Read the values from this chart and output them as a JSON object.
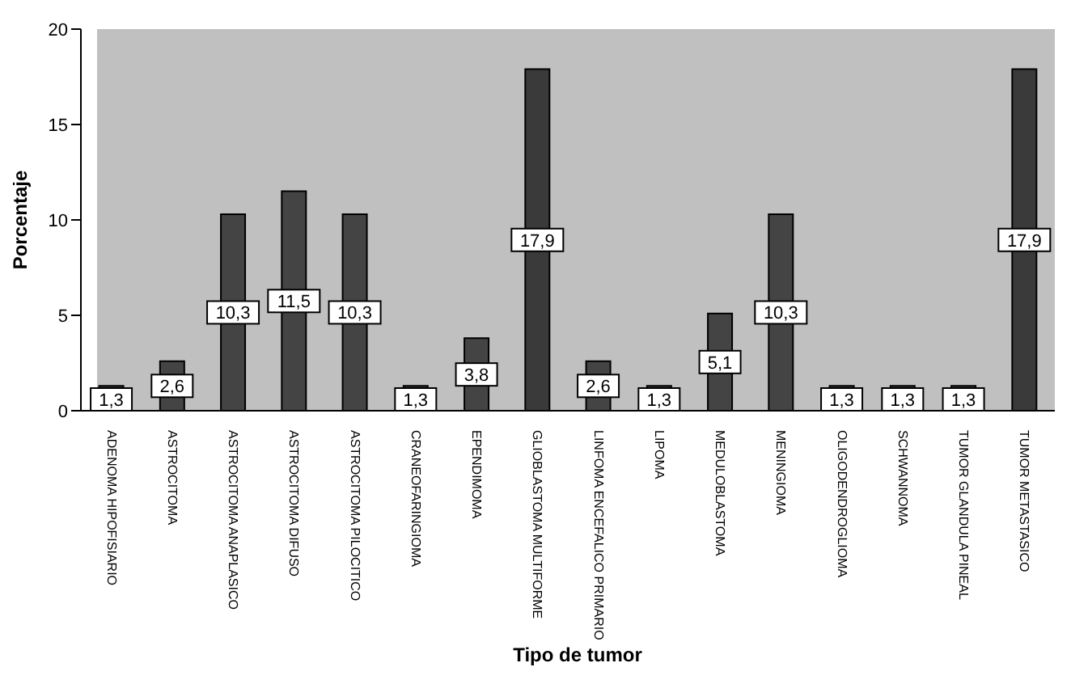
{
  "chart_data": {
    "type": "bar",
    "xlabel": "Tipo de tumor",
    "ylabel": "Porcentaje",
    "categories": [
      "ADENOMA HIPOFISIARIO",
      "ASTROCITOMA",
      "ASTROCITOMA ANAPLASICO",
      "ASTROCITOMA DIFUSO",
      "ASTROCITOMA PILOCITICO",
      "CRANEOFARINGIOMA",
      "EPENDIMOMA",
      "GLIOBLASTOMA MULTIFORME",
      "LINFOMA ENCEFALICO PRIMARIO",
      "LIPOMA",
      "MEDULOBLASTOMA",
      "MENINGIOMA",
      "OLIGODENDROGLIOMA",
      "SCHWANNOMA",
      "TUMOR GLANDULA PINEAL",
      "TUMOR METASTASICO"
    ],
    "values": [
      1.3,
      2.6,
      10.3,
      11.5,
      10.3,
      1.3,
      3.8,
      17.9,
      2.6,
      1.3,
      5.1,
      10.3,
      1.3,
      1.3,
      1.3,
      17.9
    ],
    "value_labels": [
      "1,3",
      "2,6",
      "10,3",
      "11,5",
      "10,3",
      "1,3",
      "3,8",
      "17,9",
      "2,6",
      "1,3",
      "5,1",
      "10,3",
      "1,3",
      "1,3",
      "1,3",
      "17,9"
    ],
    "colors": [
      "#444444",
      "#444444",
      "#444444",
      "#444444",
      "#444444",
      "#444444",
      "#444444",
      "#3a3a3a",
      "#444444",
      "#444444",
      "#444444",
      "#444444",
      "#444444",
      "#444444",
      "#444444",
      "#3a3a3a"
    ],
    "ylim": [
      0,
      20
    ],
    "yticks": [
      0,
      5,
      10,
      15,
      20
    ],
    "grid": false
  }
}
